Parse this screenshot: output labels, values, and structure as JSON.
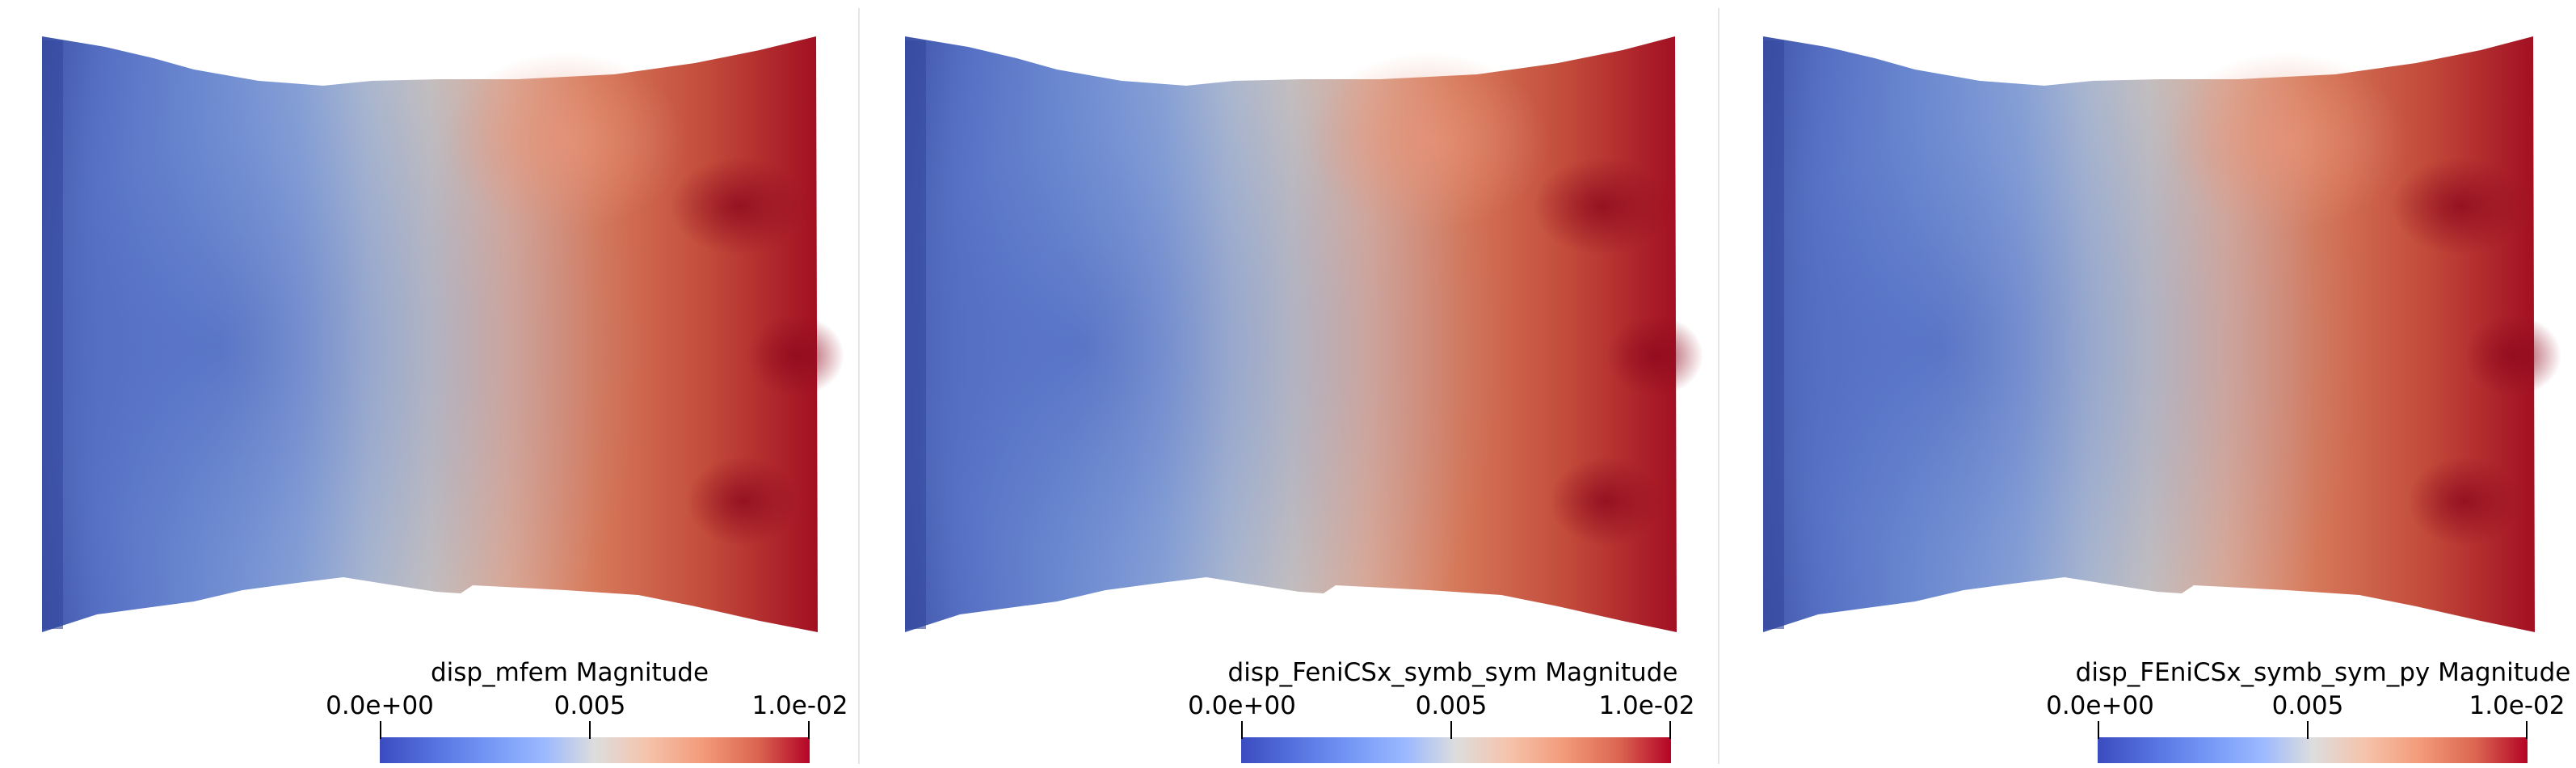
{
  "colors": {
    "low": "#3b4cc0",
    "mid": "#dddddd",
    "high": "#b40426",
    "divider": "#e5e5e5"
  },
  "panels": [
    {
      "title": "disp_mfem Magnitude",
      "tick_min": "0.0e+00",
      "tick_mid": "0.005",
      "tick_max": "1.0e-02"
    },
    {
      "title": "disp_FeniCSx_symb_sym Magnitude",
      "tick_min": "0.0e+00",
      "tick_mid": "0.005",
      "tick_max": "1.0e-02"
    },
    {
      "title": "disp_FEniCSx_symb_sym_py Magnitude",
      "tick_min": "0.0e+00",
      "tick_mid": "0.005",
      "tick_max": "1.0e-02"
    }
  ]
}
